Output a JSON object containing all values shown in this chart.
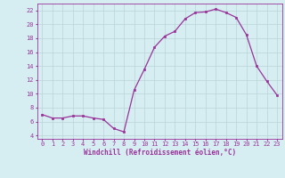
{
  "x": [
    0,
    1,
    2,
    3,
    4,
    5,
    6,
    7,
    8,
    9,
    10,
    11,
    12,
    13,
    14,
    15,
    16,
    17,
    18,
    19,
    20,
    21,
    22,
    23
  ],
  "y": [
    7.0,
    6.5,
    6.5,
    6.8,
    6.8,
    6.5,
    6.3,
    5.0,
    4.5,
    10.5,
    13.5,
    16.7,
    18.3,
    19.0,
    20.8,
    21.7,
    21.8,
    22.2,
    21.7,
    21.0,
    18.5,
    14.0,
    11.8,
    9.8
  ],
  "line_color": "#993399",
  "marker": "s",
  "markersize": 2.0,
  "linewidth": 0.9,
  "xlabel": "Windchill (Refroidissement éolien,°C)",
  "xlabel_fontsize": 5.5,
  "ylabel_ticks": [
    4,
    6,
    8,
    10,
    12,
    14,
    16,
    18,
    20,
    22
  ],
  "xtick_labels": [
    "0",
    "1",
    "2",
    "3",
    "4",
    "5",
    "6",
    "7",
    "8",
    "9",
    "10",
    "11",
    "12",
    "13",
    "14",
    "15",
    "16",
    "17",
    "18",
    "19",
    "20",
    "21",
    "22",
    "23"
  ],
  "ylim": [
    3.5,
    23.0
  ],
  "xlim": [
    -0.5,
    23.5
  ],
  "bg_color": "#d6eef2",
  "grid_color": "#b8d4d8",
  "tick_color": "#993399",
  "tick_fontsize": 5.0
}
